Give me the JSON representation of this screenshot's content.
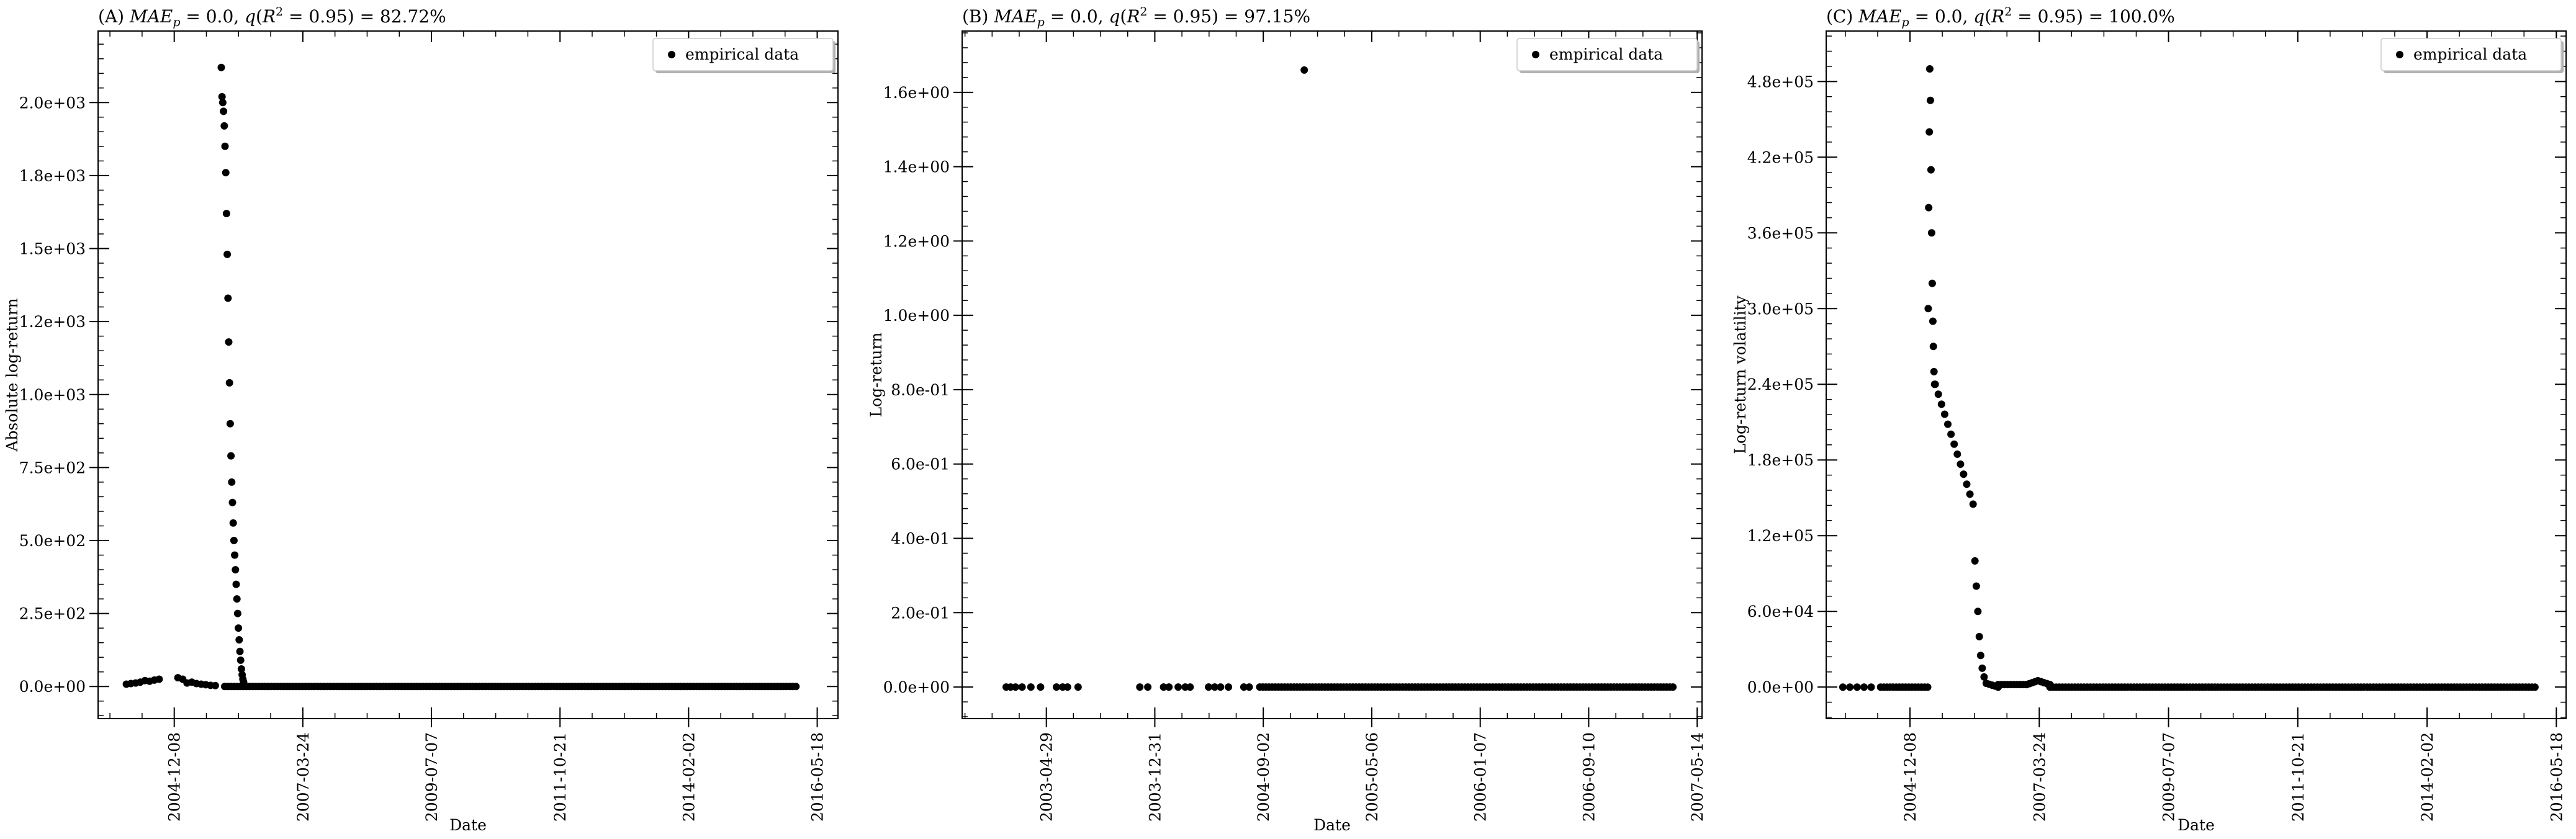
{
  "chart_data": [
    {
      "type": "scatter",
      "title": "(A) MAE_p = 0.0, q(R^2 = 0.95) = 82.72%",
      "title_parts": {
        "label": "(A)",
        "mae": "MAE",
        "mae_sub": "p",
        "eq1": "= 0.0,",
        "q": "q",
        "r": "(R",
        "r_sup": "2",
        "tail": "= 0.95) = 82.72%"
      },
      "xlabel": "Date",
      "ylabel": "Absolute log-return",
      "x_ticks": [
        "2004-12-08",
        "2007-03-24",
        "2009-07-07",
        "2011-10-21",
        "2014-02-02",
        "2016-05-18"
      ],
      "x_range": [
        "2003-08-01",
        "2016-09-30"
      ],
      "y_ticks": [
        "0.0e+00",
        "2.5e+02",
        "5.0e+02",
        "7.5e+02",
        "1.0e+03",
        "1.2e+03",
        "1.5e+03",
        "1.8e+03",
        "2.0e+03"
      ],
      "y_tick_values": [
        0,
        250,
        500,
        750,
        1000,
        1250,
        1500,
        1750,
        2000
      ],
      "ylim": [
        -110,
        2245
      ],
      "legend": {
        "label": "empirical data",
        "placement": "top-right"
      },
      "series": [
        {
          "name": "empirical data",
          "spike": {
            "date": "2005-10-10",
            "values": [
              2120,
              2020,
              2000,
              1970,
              1920,
              1850,
              1760,
              1620,
              1480,
              1330,
              1180,
              1040,
              900,
              790,
              700,
              630,
              560,
              500,
              450,
              400,
              350,
              300,
              250,
              200,
              160,
              120,
              90,
              60,
              40,
              25,
              15
            ]
          },
          "points": [
            {
              "date": "2004-02-01",
              "value": 8
            },
            {
              "date": "2004-03-01",
              "value": 10
            },
            {
              "date": "2004-04-01",
              "value": 12
            },
            {
              "date": "2004-05-01",
              "value": 15
            },
            {
              "date": "2004-06-01",
              "value": 20
            },
            {
              "date": "2004-07-01",
              "value": 18
            },
            {
              "date": "2004-08-01",
              "value": 22
            },
            {
              "date": "2004-09-01",
              "value": 25
            },
            {
              "date": "2005-01-01",
              "value": 30
            },
            {
              "date": "2005-02-01",
              "value": 25
            },
            {
              "date": "2005-03-01",
              "value": 12
            },
            {
              "date": "2005-04-01",
              "value": 15
            },
            {
              "date": "2005-05-01",
              "value": 10
            },
            {
              "date": "2005-06-01",
              "value": 8
            },
            {
              "date": "2005-07-01",
              "value": 6
            },
            {
              "date": "2005-08-01",
              "value": 4
            },
            {
              "date": "2005-09-01",
              "value": 3
            }
          ],
          "flat": {
            "start": "2005-11-01",
            "end": "2016-01-01",
            "value": 0
          }
        }
      ]
    },
    {
      "type": "scatter",
      "title": "(B) MAE_p = 0.0, q(R^2 = 0.95) = 97.15%",
      "title_parts": {
        "label": "(B)",
        "mae": "MAE",
        "mae_sub": "p",
        "eq1": "= 0.0,",
        "q": "q",
        "r": "(R",
        "r_sup": "2",
        "tail": "= 0.95) = 97.15%"
      },
      "xlabel": "Date",
      "ylabel": "Log-return",
      "x_ticks": [
        "2003-04-29",
        "2003-12-31",
        "2004-09-02",
        "2005-05-06",
        "2006-01-07",
        "2006-09-10",
        "2007-05-14"
      ],
      "x_range": [
        "2002-10-20",
        "2007-05-25"
      ],
      "y_ticks": [
        "0.0e+00",
        "2.0e-01",
        "4.0e-01",
        "6.0e-01",
        "8.0e-01",
        "1.0e+00",
        "1.2e+00",
        "1.4e+00",
        "1.6e+00"
      ],
      "y_tick_values": [
        0,
        0.2,
        0.4,
        0.6,
        0.8,
        1.0,
        1.2,
        1.4,
        1.6
      ],
      "ylim": [
        -0.085,
        1.765
      ],
      "legend": {
        "label": "empirical data",
        "placement": "top-right"
      },
      "series": [
        {
          "name": "empirical data",
          "points": [
            {
              "date": "2003-01-28",
              "value": 0
            },
            {
              "date": "2003-02-07",
              "value": 0
            },
            {
              "date": "2003-02-18",
              "value": 0
            },
            {
              "date": "2003-03-05",
              "value": 0
            },
            {
              "date": "2003-03-25",
              "value": 0
            },
            {
              "date": "2003-04-16",
              "value": 0
            },
            {
              "date": "2003-05-22",
              "value": 0
            },
            {
              "date": "2003-06-05",
              "value": 0
            },
            {
              "date": "2003-06-16",
              "value": 0
            },
            {
              "date": "2003-07-10",
              "value": 0
            },
            {
              "date": "2003-11-27",
              "value": 0
            },
            {
              "date": "2003-12-15",
              "value": 0
            },
            {
              "date": "2004-01-20",
              "value": 0
            },
            {
              "date": "2004-02-01",
              "value": 0
            },
            {
              "date": "2004-02-22",
              "value": 0
            },
            {
              "date": "2004-03-09",
              "value": 0
            },
            {
              "date": "2004-03-20",
              "value": 0
            },
            {
              "date": "2004-05-01",
              "value": 0
            },
            {
              "date": "2004-05-15",
              "value": 0
            },
            {
              "date": "2004-05-28",
              "value": 0
            },
            {
              "date": "2004-06-15",
              "value": 0
            },
            {
              "date": "2004-07-20",
              "value": 0
            },
            {
              "date": "2004-08-01",
              "value": 0
            },
            {
              "date": "2004-12-04",
              "value": 1.66
            }
          ],
          "flat": {
            "start": "2004-08-25",
            "end": "2007-03-20",
            "value": 0
          }
        }
      ]
    },
    {
      "type": "scatter",
      "title": "(C) MAE_p = 0.0, q(R^2 = 0.95) = 100.0%",
      "title_parts": {
        "label": "(C)",
        "mae": "MAE",
        "mae_sub": "p",
        "eq1": "= 0.0,",
        "q": "q",
        "r": "(R",
        "r_sup": "2",
        "tail": "= 0.95) = 100.0%"
      },
      "xlabel": "Date",
      "ylabel": "Log-return volatility",
      "x_ticks": [
        "2004-12-08",
        "2007-03-24",
        "2009-07-07",
        "2011-10-21",
        "2014-02-02",
        "2016-05-18"
      ],
      "x_range": [
        "2003-06-15",
        "2016-07-20"
      ],
      "y_ticks": [
        "0.0e+00",
        "6.0e+04",
        "1.2e+05",
        "1.8e+05",
        "2.4e+05",
        "3.0e+05",
        "3.6e+05",
        "4.2e+05",
        "4.8e+05"
      ],
      "y_tick_values": [
        0,
        60000,
        120000,
        180000,
        240000,
        300000,
        360000,
        420000,
        480000
      ],
      "ylim": [
        -25000,
        520000
      ],
      "legend": {
        "label": "empirical data",
        "placement": "top-right"
      },
      "series": [
        {
          "name": "empirical data",
          "points": [
            {
              "date": "2003-10-01",
              "value": 0
            },
            {
              "date": "2003-11-15",
              "value": 0
            },
            {
              "date": "2004-01-01",
              "value": 0
            },
            {
              "date": "2004-02-15",
              "value": 0
            },
            {
              "date": "2004-04-01",
              "value": 0
            },
            {
              "date": "2005-04-05",
              "value": 300000
            },
            {
              "date": "2005-04-08",
              "value": 380000
            },
            {
              "date": "2005-04-12",
              "value": 440000
            },
            {
              "date": "2005-04-15",
              "value": 490000
            },
            {
              "date": "2005-04-19",
              "value": 465000
            },
            {
              "date": "2005-04-23",
              "value": 410000
            },
            {
              "date": "2005-04-27",
              "value": 360000
            },
            {
              "date": "2005-05-01",
              "value": 320000
            },
            {
              "date": "2005-05-05",
              "value": 290000
            },
            {
              "date": "2005-05-08",
              "value": 270000
            },
            {
              "date": "2005-05-12",
              "value": 250000
            },
            {
              "date": "2005-05-16",
              "value": 240000
            },
            {
              "date": "2006-02-01",
              "value": 100000
            },
            {
              "date": "2006-02-10",
              "value": 80000
            },
            {
              "date": "2006-02-20",
              "value": 60000
            },
            {
              "date": "2006-03-01",
              "value": 40000
            },
            {
              "date": "2006-03-10",
              "value": 25000
            },
            {
              "date": "2006-03-20",
              "value": 15000
            },
            {
              "date": "2006-04-01",
              "value": 8000
            }
          ],
          "segments": [
            {
              "start": "2004-06-01",
              "end": "2005-04-01",
              "from": 0,
              "to": 0
            },
            {
              "start": "2005-05-20",
              "end": "2006-01-20",
              "from": 240000,
              "to": 145000
            },
            {
              "start": "2006-04-15",
              "end": "2006-07-01",
              "from": 3000,
              "to": 0
            },
            {
              "start": "2006-07-01",
              "end": "2007-01-01",
              "from": 2000,
              "to": 2000
            },
            {
              "start": "2007-01-01",
              "end": "2007-03-15",
              "from": 2000,
              "to": 5000
            },
            {
              "start": "2007-03-15",
              "end": "2007-06-01",
              "from": 5000,
              "to": 2000
            },
            {
              "start": "2007-06-01",
              "end": "2016-01-01",
              "from": 0,
              "to": 0
            }
          ]
        }
      ]
    }
  ]
}
